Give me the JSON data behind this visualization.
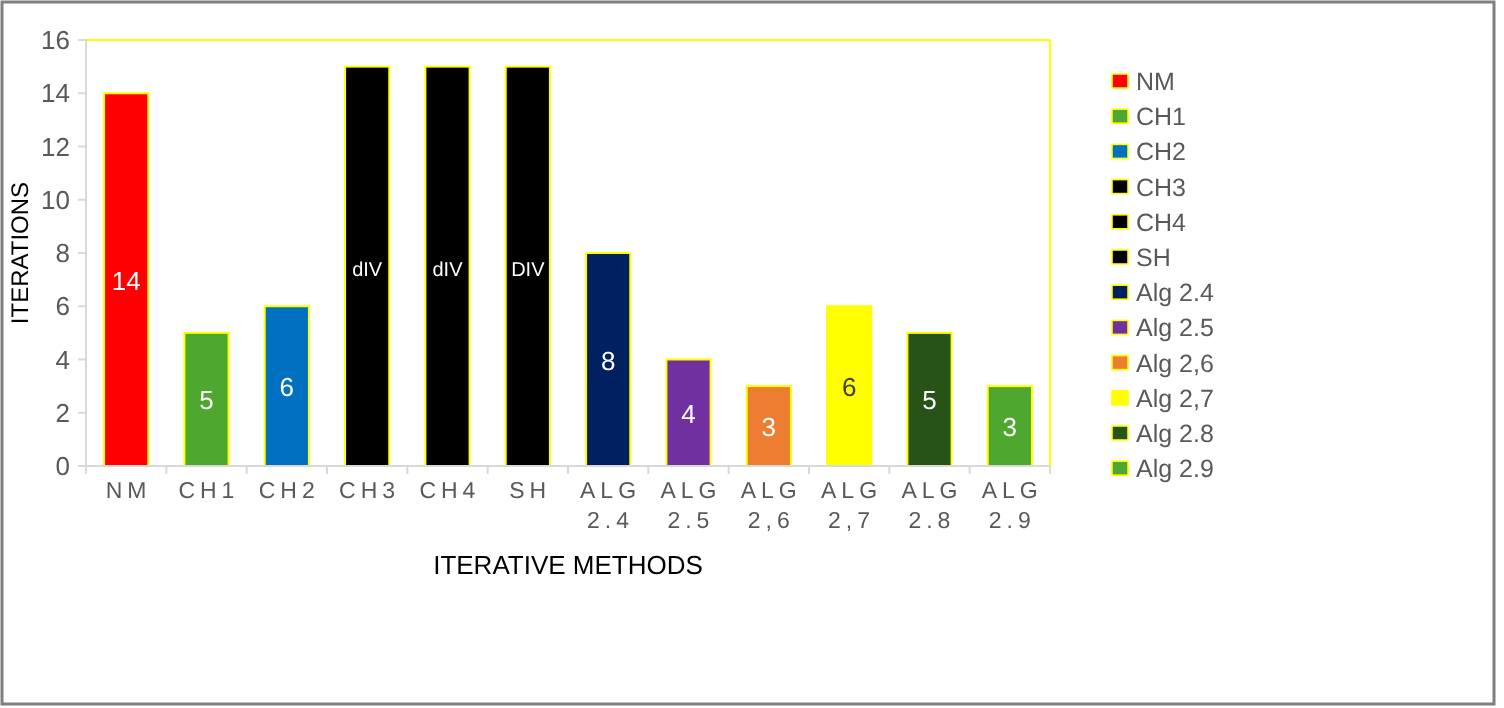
{
  "chart_data": {
    "type": "bar",
    "xlabel": "ITERATIVE METHODS",
    "ylabel": "ITERATIONS",
    "categories": [
      "NM",
      "CH1",
      "CH2",
      "CH3",
      "CH4",
      "SH",
      "ALG 2.4",
      "ALG 2.5",
      "ALG 2,6",
      "ALG 2,7",
      "ALG 2.8",
      "ALG 2.9"
    ],
    "ylim": [
      0,
      16
    ],
    "yticks": [
      0,
      2,
      4,
      6,
      8,
      10,
      12,
      14,
      16
    ],
    "legend": "right",
    "series": [
      {
        "name": "NM",
        "color": "#ff0000",
        "values": [
          14,
          null,
          null,
          null,
          null,
          null,
          null,
          null,
          null,
          null,
          null,
          null
        ],
        "value_labels": [
          "14",
          null,
          null,
          null,
          null,
          null,
          null,
          null,
          null,
          null,
          null,
          null
        ]
      },
      {
        "name": "CH1",
        "color": "#4ea72e",
        "values": [
          null,
          5,
          null,
          null,
          null,
          null,
          null,
          null,
          null,
          null,
          null,
          null
        ],
        "value_labels": [
          null,
          "5",
          null,
          null,
          null,
          null,
          null,
          null,
          null,
          null,
          null,
          null
        ]
      },
      {
        "name": "CH2",
        "color": "#0070c0",
        "values": [
          null,
          null,
          6,
          null,
          null,
          null,
          null,
          null,
          null,
          null,
          null,
          null
        ],
        "value_labels": [
          null,
          null,
          "6",
          null,
          null,
          null,
          null,
          null,
          null,
          null,
          null,
          null
        ]
      },
      {
        "name": "CH3",
        "color": "#000000",
        "values": [
          null,
          null,
          null,
          15,
          null,
          null,
          null,
          null,
          null,
          null,
          null,
          null
        ],
        "value_labels": [
          null,
          null,
          null,
          "dIV",
          null,
          null,
          null,
          null,
          null,
          null,
          null,
          null
        ]
      },
      {
        "name": "CH4",
        "color": "#000000",
        "values": [
          null,
          null,
          null,
          null,
          15,
          null,
          null,
          null,
          null,
          null,
          null,
          null
        ],
        "value_labels": [
          null,
          null,
          null,
          null,
          "dIV",
          null,
          null,
          null,
          null,
          null,
          null,
          null
        ]
      },
      {
        "name": "SH",
        "color": "#000000",
        "values": [
          null,
          null,
          null,
          null,
          null,
          15,
          null,
          null,
          null,
          null,
          null,
          null
        ],
        "value_labels": [
          null,
          null,
          null,
          null,
          null,
          "DIV",
          null,
          null,
          null,
          null,
          null,
          null
        ]
      },
      {
        "name": "Alg 2.4",
        "color": "#002060",
        "values": [
          null,
          null,
          null,
          null,
          null,
          null,
          8,
          null,
          null,
          null,
          null,
          null
        ],
        "value_labels": [
          null,
          null,
          null,
          null,
          null,
          null,
          "8",
          null,
          null,
          null,
          null,
          null
        ]
      },
      {
        "name": "Alg 2.5",
        "color": "#7030a0",
        "values": [
          null,
          null,
          null,
          null,
          null,
          null,
          null,
          4,
          null,
          null,
          null,
          null
        ],
        "value_labels": [
          null,
          null,
          null,
          null,
          null,
          null,
          null,
          "4",
          null,
          null,
          null,
          null
        ]
      },
      {
        "name": "Alg 2,6",
        "color": "#ed7d31",
        "values": [
          null,
          null,
          null,
          null,
          null,
          null,
          null,
          null,
          3,
          null,
          null,
          null
        ],
        "value_labels": [
          null,
          null,
          null,
          null,
          null,
          null,
          null,
          null,
          "3",
          null,
          null,
          null
        ]
      },
      {
        "name": "Alg 2,7",
        "color": "#ffff00",
        "values": [
          null,
          null,
          null,
          null,
          null,
          null,
          null,
          null,
          null,
          6,
          null,
          null
        ],
        "value_labels": [
          null,
          null,
          null,
          null,
          null,
          null,
          null,
          null,
          null,
          "6",
          null,
          null
        ]
      },
      {
        "name": "Alg 2.8",
        "color": "#275317",
        "values": [
          null,
          null,
          null,
          null,
          null,
          null,
          null,
          null,
          null,
          null,
          5,
          null
        ],
        "value_labels": [
          null,
          null,
          null,
          null,
          null,
          null,
          null,
          null,
          null,
          null,
          "5",
          null
        ]
      },
      {
        "name": "Alg 2.9",
        "color": "#4ea72e",
        "values": [
          null,
          null,
          null,
          null,
          null,
          null,
          null,
          null,
          null,
          null,
          null,
          3
        ],
        "value_labels": [
          null,
          null,
          null,
          null,
          null,
          null,
          null,
          null,
          null,
          null,
          null,
          "3"
        ]
      }
    ]
  }
}
